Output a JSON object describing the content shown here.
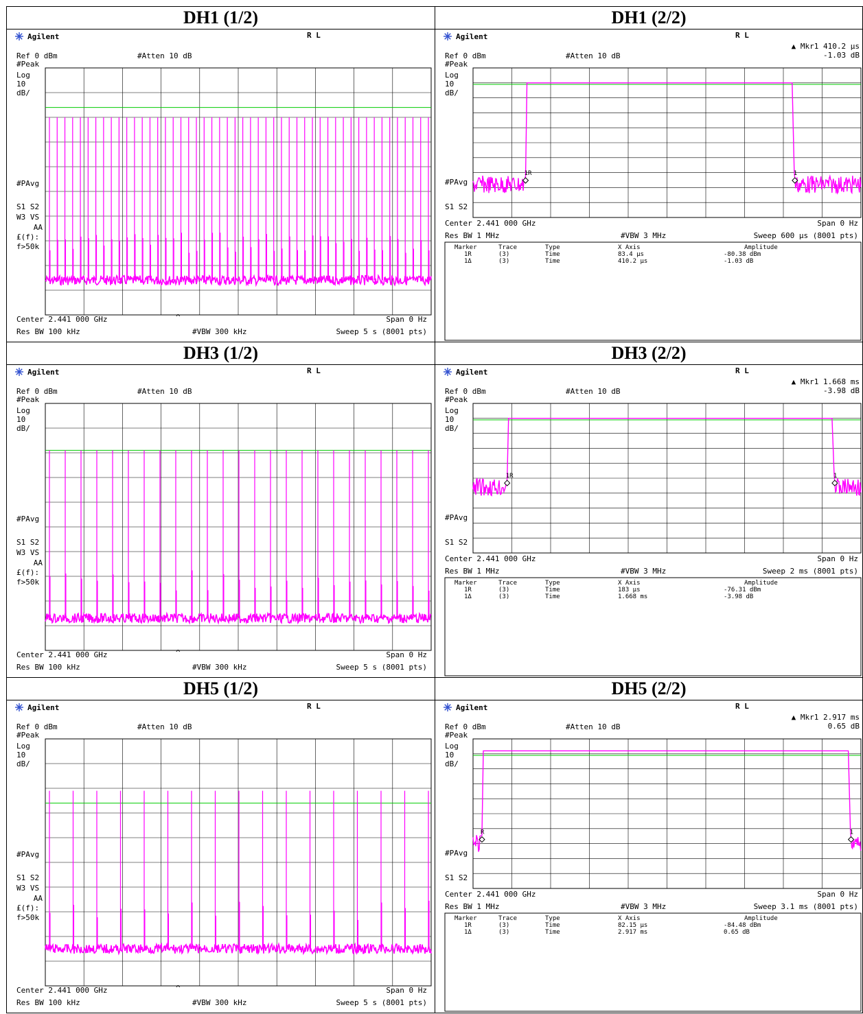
{
  "panels": [
    {
      "heading": "DH1 (1/2)",
      "brand": "Agilent",
      "rl": "R L",
      "ref": "Ref 0 dBm",
      "atten": "#Atten 10 dB",
      "left_labels": [
        "#Peak",
        "Log",
        "10",
        "dB/",
        "#PAvg",
        "S1  S2",
        "W3  VS",
        "AA",
        "£(f):",
        "f>50k"
      ],
      "center": "Center 2.441 000 GHz",
      "span": "Span 0 Hz",
      "res_bw": "Res BW 100 kHz",
      "vbw": "#VBW 300 kHz",
      "sweep": "Sweep 5 s (8001 pts)",
      "caret": "^",
      "mode": "pulses",
      "pulse_count": 50,
      "pulse_peak_div": 2.0,
      "noise_floor_div": 8.6,
      "threshold_div": 1.6
    },
    {
      "heading": "DH1 (2/2)",
      "brand": "Agilent",
      "rl": "R L",
      "ref": "Ref 0 dBm",
      "atten": "#Atten 10 dB",
      "marker_readout": "▲ Mkr1  410.2 μs",
      "marker_value": "-1.03 dB",
      "left_labels": [
        "#Peak",
        "Log",
        "10",
        "dB/",
        "#PAvg",
        "S1  S2"
      ],
      "center": "Center 2.441 000 GHz",
      "span": "Span 0 Hz",
      "res_bw": "Res BW 1 MHz",
      "vbw": "#VBW 3 MHz",
      "sweep": "Sweep 600 μs (8001 pts)",
      "mode": "burst",
      "sweep_us": 600,
      "burst_start_us": 83.4,
      "burst_len_us": 410.2,
      "burst_level_div": 1.0,
      "noise_floor_div": 7.8,
      "threshold_div": 1.1,
      "marker_table": {
        "headers": [
          "Marker",
          "Trace",
          "Type",
          "X Axis",
          "Amplitude"
        ],
        "rows": [
          [
            "1R",
            "(3)",
            "Time",
            "83.4 μs",
            "-80.38 dBm"
          ],
          [
            "1Δ",
            "(3)",
            "Time",
            "410.2 μs",
            "-1.03 dB"
          ]
        ]
      },
      "marker_tags": [
        "1R",
        "1"
      ]
    },
    {
      "heading": "DH3 (1/2)",
      "brand": "Agilent",
      "rl": "R L",
      "ref": "Ref 0 dBm",
      "atten": "#Atten 10 dB",
      "left_labels": [
        "#Peak",
        "Log",
        "10",
        "dB/",
        "#PAvg",
        "S1  S2",
        "W3  VS",
        "AA",
        "£(f):",
        "f>50k"
      ],
      "center": "Center 2.441 000 GHz",
      "span": "Span 0 Hz",
      "res_bw": "Res BW 100 kHz",
      "vbw": "#VBW 300 kHz",
      "sweep": "Sweep 5 s (8001 pts)",
      "caret": "^",
      "mode": "pulses",
      "pulse_count": 25,
      "pulse_peak_div": 1.9,
      "noise_floor_div": 8.7,
      "threshold_div": 1.9
    },
    {
      "heading": "DH3 (2/2)",
      "brand": "Agilent",
      "rl": "R L",
      "ref": "Ref 0 dBm",
      "atten": "#Atten 10 dB",
      "marker_readout": "▲ Mkr1  1.668 ms",
      "marker_value": "-3.98 dB",
      "left_labels": [
        "#Peak",
        "Log",
        "10",
        "dB/",
        "#PAvg",
        "S1  S2"
      ],
      "center": "Center 2.441 000 GHz",
      "span": "Span 0 Hz",
      "res_bw": "Res BW 1 MHz",
      "vbw": "#VBW 3 MHz",
      "sweep": "Sweep 2 ms (8001 pts)",
      "mode": "burst",
      "sweep_us": 2000,
      "burst_start_us": 183,
      "burst_len_us": 1668,
      "burst_level_div": 1.0,
      "noise_floor_div": 5.6,
      "threshold_div": 1.1,
      "marker_table": {
        "headers": [
          "Marker",
          "Trace",
          "Type",
          "X Axis",
          "Amplitude"
        ],
        "rows": [
          [
            "1R",
            "(3)",
            "Time",
            "183 μs",
            "-76.31 dBm"
          ],
          [
            "1Δ",
            "(3)",
            "Time",
            "1.668 ms",
            "-3.98 dB"
          ]
        ]
      },
      "marker_tags": [
        "1R",
        "1"
      ]
    },
    {
      "heading": "DH5 (1/2)",
      "brand": "Agilent",
      "rl": "R L",
      "ref": "Ref 0 dBm",
      "atten": "#Atten 10 dB",
      "left_labels": [
        "#Peak",
        "Log",
        "10",
        "dB/",
        "#PAvg",
        "S1  S2",
        "W3  VS",
        "AA",
        "£(f):",
        "f>50k"
      ],
      "center": "Center 2.441 000 GHz",
      "span": "Span 0 Hz",
      "res_bw": "Res BW 100 kHz",
      "vbw": "#VBW 300 kHz",
      "sweep": "Sweep 5 s (8001 pts)",
      "caret": "^",
      "mode": "pulses",
      "pulse_count": 17,
      "pulse_peak_div": 2.1,
      "noise_floor_div": 8.5,
      "threshold_div": 2.6
    },
    {
      "heading": "DH5 (2/2)",
      "brand": "Agilent",
      "rl": "R L",
      "ref": "Ref 0 dBm",
      "atten": "#Atten 10 dB",
      "marker_readout": "▲ Mkr1  2.917 ms",
      "marker_value": "0.65 dB",
      "left_labels": [
        "#Peak",
        "Log",
        "10",
        "dB/",
        "#PAvg",
        "S1  S2"
      ],
      "center": "Center 2.441 000 GHz",
      "span": "Span 0 Hz",
      "res_bw": "Res BW 1 MHz",
      "vbw": "#VBW 3 MHz",
      "sweep": "Sweep 3.1 ms (8001 pts)",
      "mode": "burst",
      "sweep_us": 3100,
      "burst_start_us": 82.15,
      "burst_len_us": 2917,
      "burst_level_div": 0.8,
      "noise_floor_div": 7.0,
      "threshold_div": 1.1,
      "marker_table": {
        "headers": [
          "Marker",
          "Trace",
          "Type",
          "X Axis",
          "Amplitude"
        ],
        "rows": [
          [
            "1R",
            "(3)",
            "Time",
            "82.15 μs",
            "-84.48 dBm"
          ],
          [
            "1Δ",
            "(3)",
            "Time",
            "2.917 ms",
            "0.65 dB"
          ]
        ]
      },
      "marker_tags": [
        "R",
        "1"
      ]
    }
  ],
  "colors": {
    "trace": "#ff00ff",
    "threshold": "#00cc00",
    "grid": "#000000",
    "logo": "#3050d0"
  },
  "chart_data": [
    {
      "type": "line",
      "title": "DH1 (1/2)",
      "x_span": "5 s",
      "pulses": 50,
      "ylim": [
        -100,
        0
      ]
    },
    {
      "type": "line",
      "title": "DH1 (2/2)",
      "x": [
        0,
        83.4,
        493.6,
        600
      ],
      "xlabel": "",
      "burst_on_us": [
        83.4,
        493.6
      ],
      "marker_delta_us": 410.2,
      "marker_delta_db": -1.03,
      "ylim": [
        -100,
        0
      ]
    },
    {
      "type": "line",
      "title": "DH3 (1/2)",
      "x_span": "5 s",
      "pulses": 25,
      "ylim": [
        -100,
        0
      ]
    },
    {
      "type": "line",
      "title": "DH3 (2/2)",
      "x": [
        0,
        183,
        1851,
        2000
      ],
      "burst_on_us": [
        183,
        1851
      ],
      "marker_delta_us": 1668,
      "marker_delta_db": -3.98,
      "ylim": [
        -100,
        0
      ]
    },
    {
      "type": "line",
      "title": "DH5 (1/2)",
      "x_span": "5 s",
      "pulses": 17,
      "ylim": [
        -100,
        0
      ]
    },
    {
      "type": "line",
      "title": "DH5 (2/2)",
      "x": [
        0,
        82.15,
        2999.15,
        3100
      ],
      "burst_on_us": [
        82.15,
        2999.15
      ],
      "marker_delta_us": 2917,
      "marker_delta_db": 0.65,
      "ylim": [
        -100,
        0
      ]
    }
  ]
}
